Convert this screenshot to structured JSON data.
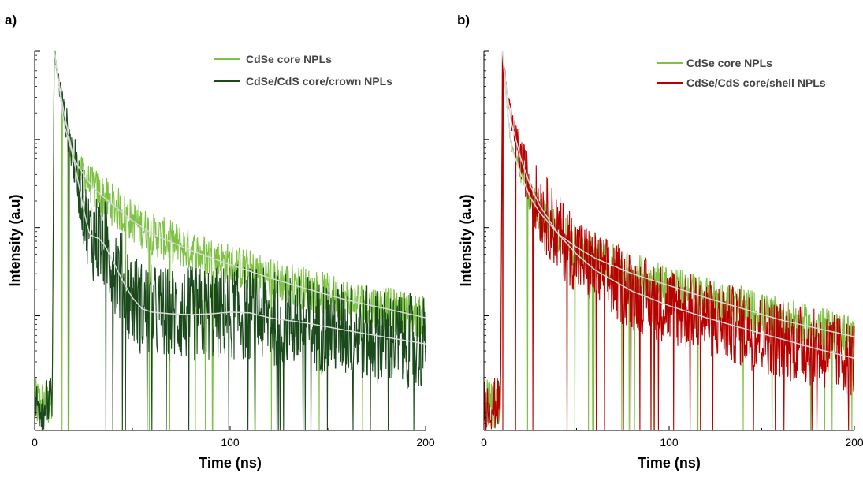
{
  "colors": {
    "core": "#7dc242",
    "crown": "#1a4a1c",
    "shell": "#b80000",
    "fit": "#d9d9d9"
  },
  "chart_data": [
    {
      "type": "line",
      "panel_label": "a)",
      "xlabel": "Time (ns)",
      "ylabel": "Intensity (a.u)",
      "x_ticks": [
        0,
        100,
        200
      ],
      "xlim": [
        0,
        200
      ],
      "yscale": "log",
      "ylim": [
        5e-05,
        1
      ],
      "y_tick_labels": false,
      "legend_position": "top-right",
      "series": [
        {
          "name": "CdSe core NPLs",
          "color_key": "core",
          "noise": 0.25,
          "x": [
            0,
            9,
            10,
            12,
            15,
            20,
            25,
            30,
            40,
            50,
            60,
            80,
            100,
            120,
            140,
            160,
            180,
            200
          ],
          "y": [
            0.0001,
            0.0001,
            1,
            0.5,
            0.15,
            0.06,
            0.04,
            0.028,
            0.018,
            0.012,
            0.0085,
            0.0055,
            0.0038,
            0.0027,
            0.002,
            0.0015,
            0.0012,
            0.00095
          ]
        },
        {
          "name": "CdSe/CdS core/crown NPLs",
          "color_key": "crown",
          "noise": 0.55,
          "x": [
            0,
            9,
            10,
            12,
            15,
            20,
            25,
            28,
            30,
            33,
            36,
            40,
            45,
            50,
            55,
            60,
            70,
            80,
            90,
            100,
            110,
            120,
            140,
            160,
            180,
            200
          ],
          "y": [
            0.0001,
            0.0001,
            1,
            0.5,
            0.2,
            0.06,
            0.016,
            0.0085,
            0.0079,
            0.0075,
            0.0062,
            0.0042,
            0.0025,
            0.0016,
            0.0012,
            0.0011,
            0.00105,
            0.00103,
            0.00105,
            0.0011,
            0.00108,
            0.00095,
            0.00082,
            0.00068,
            0.00057,
            0.00048
          ]
        }
      ]
    },
    {
      "type": "line",
      "panel_label": "b)",
      "xlabel": "Time (ns)",
      "ylabel": "Intensity (a.u)",
      "x_ticks": [
        0,
        100,
        200
      ],
      "xlim": [
        0,
        200
      ],
      "yscale": "log",
      "ylim": [
        5e-05,
        1
      ],
      "y_tick_labels": false,
      "legend_position": "top-right",
      "series": [
        {
          "name": "CdSe core NPLs",
          "color_key": "core",
          "noise": 0.25,
          "x": [
            0,
            9,
            10,
            12,
            15,
            20,
            25,
            30,
            40,
            50,
            60,
            80,
            100,
            120,
            140,
            160,
            180,
            200
          ],
          "y": [
            0.0001,
            0.0001,
            1,
            0.3,
            0.08,
            0.04,
            0.022,
            0.015,
            0.0085,
            0.006,
            0.0045,
            0.003,
            0.0022,
            0.0016,
            0.0012,
            0.0009,
            0.00072,
            0.00058
          ]
        },
        {
          "name": "CdSe/CdS core/shell NPLs",
          "color_key": "shell",
          "noise": 0.45,
          "x": [
            0,
            9,
            10,
            12,
            15,
            20,
            25,
            30,
            40,
            50,
            60,
            80,
            100,
            120,
            140,
            160,
            180,
            200
          ],
          "y": [
            0.0001,
            0.0001,
            1,
            0.4,
            0.15,
            0.06,
            0.03,
            0.018,
            0.0085,
            0.005,
            0.0033,
            0.0019,
            0.0013,
            0.00095,
            0.00072,
            0.00055,
            0.00042,
            0.00033
          ]
        }
      ]
    }
  ]
}
